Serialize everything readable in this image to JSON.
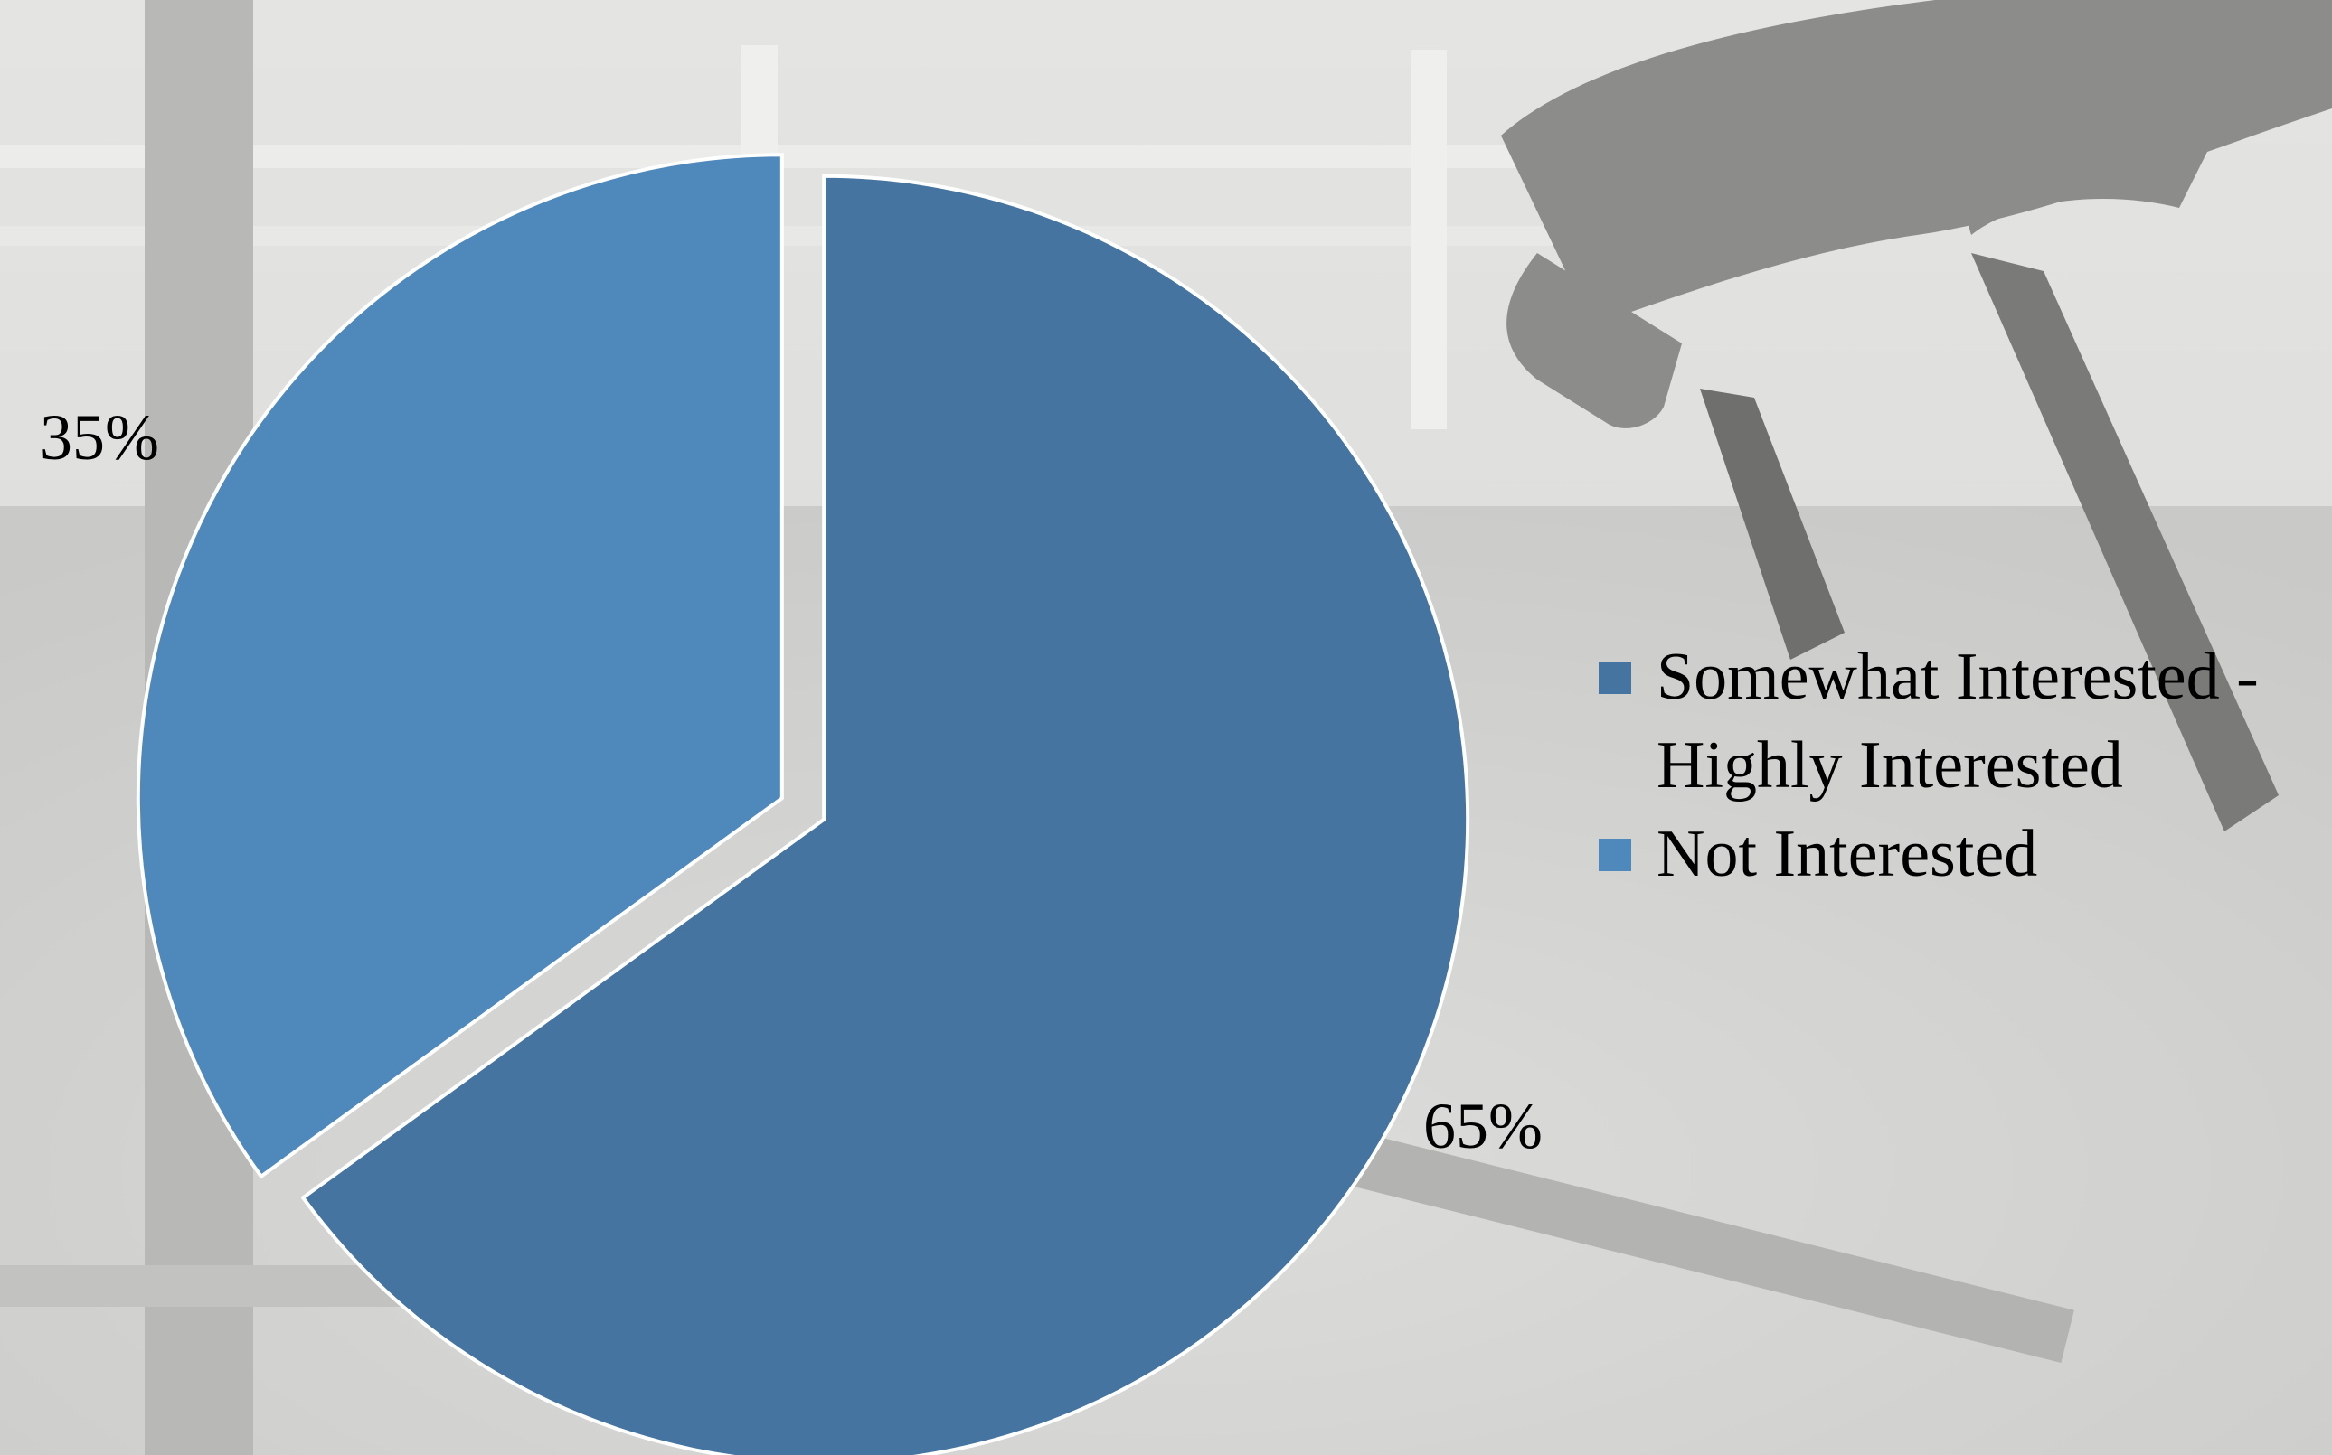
{
  "chart_data": {
    "type": "pie",
    "title": "",
    "categories": [
      "Somewhat Interested - Highly Interested",
      "Not Interested"
    ],
    "values": [
      65,
      35
    ],
    "data_labels": [
      "65%",
      "35%"
    ],
    "colors": [
      "#44749f",
      "#4f88bb"
    ],
    "legend_position": "right",
    "exploded_slices": true,
    "background": "grayscale photo of a horse jumping over a rail in an arena"
  },
  "legend": {
    "items": [
      {
        "lines": [
          "Somewhat Interested -",
          "Highly Interested"
        ],
        "color": "#44749f"
      },
      {
        "lines": [
          "Not Interested"
        ],
        "color": "#4f88bb"
      }
    ]
  }
}
